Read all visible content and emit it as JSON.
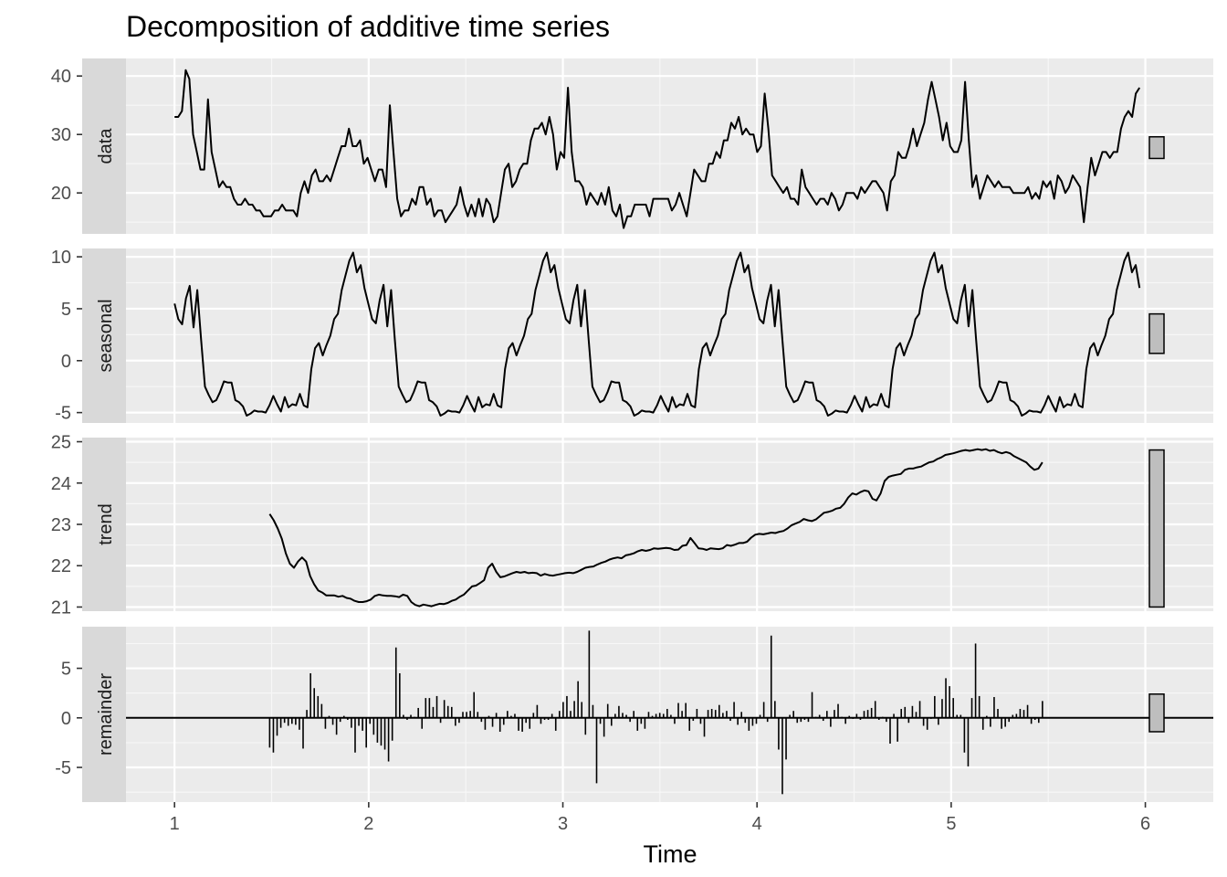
{
  "chart_data": {
    "type": "line",
    "title": "Decomposition of additive time series",
    "xlabel": "Time",
    "xlim": [
      0.75,
      6.35
    ],
    "x_ticks": [
      1,
      2,
      3,
      4,
      5,
      6
    ],
    "grid": true,
    "legend": "none",
    "panels": [
      {
        "name": "data",
        "kind": "line",
        "ylim": [
          13.0,
          43.0
        ],
        "y_ticks": [
          20,
          30,
          40
        ],
        "range_bar": [
          25.9,
          29.6
        ],
        "x_start": 1.0,
        "x_end": 5.97,
        "values": [
          33,
          33,
          34,
          41,
          39.5,
          30,
          27,
          24,
          24,
          36,
          27,
          24,
          21,
          22,
          21,
          21,
          19,
          18,
          18,
          19,
          18,
          18,
          17,
          17,
          16,
          16,
          16,
          17,
          17,
          18,
          17,
          17,
          17,
          16,
          20,
          22,
          20,
          23,
          24,
          22,
          22,
          23,
          22,
          24,
          26,
          28,
          28,
          31,
          28,
          28,
          29,
          25,
          26,
          24,
          22,
          24,
          24,
          21,
          35,
          27,
          19,
          16,
          17,
          17,
          19,
          18,
          21,
          21,
          18,
          19,
          16,
          17,
          17,
          15,
          16,
          17,
          18,
          21,
          18,
          16,
          18,
          16,
          19,
          16,
          19,
          18,
          15,
          16,
          20,
          24,
          25,
          21,
          22,
          24,
          25,
          25,
          29,
          31,
          31,
          32,
          30,
          33,
          30,
          24,
          27,
          26,
          38,
          27,
          22,
          22,
          21,
          18,
          20,
          19,
          18,
          20,
          18,
          21,
          17,
          16,
          18,
          14,
          16,
          16,
          18,
          18,
          18,
          18,
          16,
          19,
          19,
          19,
          19,
          19,
          17,
          18,
          20,
          18,
          16,
          20,
          24,
          23,
          22,
          22,
          25,
          25,
          27,
          26,
          29,
          29,
          32,
          31,
          33,
          30,
          31,
          30,
          30,
          27,
          28,
          37,
          31,
          23,
          22,
          21,
          20,
          21,
          19,
          19,
          18,
          24,
          21,
          20,
          19,
          18,
          19,
          19,
          18,
          20,
          19,
          17,
          18,
          20,
          20,
          20,
          19,
          21,
          20,
          21,
          22,
          22,
          21,
          20,
          17,
          22,
          23,
          27,
          26,
          26,
          28,
          31,
          28,
          30,
          32,
          36,
          39,
          36,
          33,
          29,
          32,
          28,
          27,
          27,
          29,
          39,
          29,
          21,
          23,
          19,
          21,
          23,
          22,
          21,
          22,
          21,
          21,
          21,
          20,
          20,
          20,
          20,
          21,
          19,
          20,
          19,
          22,
          21,
          22,
          19,
          23,
          22,
          20,
          21,
          23,
          22,
          21,
          15,
          21,
          26,
          23,
          25,
          27,
          27,
          26,
          27,
          27,
          31,
          33,
          34,
          33,
          37,
          38
        ]
      },
      {
        "name": "seasonal",
        "kind": "line",
        "ylim": [
          -6.0,
          10.8
        ],
        "y_ticks": [
          -5,
          0,
          5,
          10
        ],
        "range_bar": [
          0.7,
          4.5
        ],
        "x_start": 1.0,
        "x_end": 5.97,
        "values": [
          5.5,
          4,
          3.5,
          6,
          7.2,
          3.2,
          6.8,
          2,
          -2.5,
          -3.3,
          -4,
          -3.8,
          -3,
          -2,
          -2.1,
          -2.1,
          -3.8,
          -4,
          -4.4,
          -5.3,
          -5.1,
          -4.8,
          -4.9,
          -4.9,
          -5,
          -4.3,
          -3.4,
          -4.2,
          -4.9,
          -3.5,
          -4.5,
          -4.2,
          -4.3,
          -3.2,
          -4.3,
          -4.5,
          -0.8,
          1.2,
          1.7,
          0.5,
          1.5,
          2.4,
          4,
          4.5,
          6.8,
          8.2,
          9.6,
          10.4,
          8.5,
          9.2,
          7,
          5.5,
          4,
          3.6,
          5.8,
          7.3,
          3.3,
          6.8,
          2,
          -2.5,
          -3.3,
          -4,
          -3.8,
          -3,
          -2,
          -2.1,
          -2.1,
          -3.8,
          -4,
          -4.4,
          -5.3,
          -5.1,
          -4.8,
          -4.9,
          -4.9,
          -5,
          -4.3,
          -3.4,
          -4.2,
          -4.9,
          -3.5,
          -4.5,
          -4.2,
          -4.3,
          -3.2,
          -4.3,
          -4.5,
          -0.8,
          1.2,
          1.7,
          0.5,
          1.5,
          2.4,
          4,
          4.5,
          6.8,
          8.2,
          9.6,
          10.4,
          8.5,
          9.2,
          7,
          5.5,
          4,
          3.6,
          5.8,
          7.3,
          3.3,
          6.8,
          2,
          -2.5,
          -3.3,
          -4,
          -3.8,
          -3,
          -2,
          -2.1,
          -2.1,
          -3.8,
          -4,
          -4.4,
          -5.3,
          -5.1,
          -4.8,
          -4.9,
          -4.9,
          -5,
          -4.3,
          -3.4,
          -4.2,
          -4.9,
          -3.5,
          -4.5,
          -4.2,
          -4.3,
          -3.2,
          -4.3,
          -4.5,
          -0.8,
          1.2,
          1.7,
          0.5,
          1.5,
          2.4,
          4,
          4.5,
          6.8,
          8.2,
          9.6,
          10.4,
          8.5,
          9.2,
          7,
          5.5,
          4,
          3.6,
          5.8,
          7.3,
          3.3,
          6.8,
          2,
          -2.5,
          -3.3,
          -4,
          -3.8,
          -3,
          -2,
          -2.1,
          -2.1,
          -3.8,
          -4,
          -4.4,
          -5.3,
          -5.1,
          -4.8,
          -4.9,
          -4.9,
          -5,
          -4.3,
          -3.4,
          -4.2,
          -4.9,
          -3.5,
          -4.5,
          -4.2,
          -4.3,
          -3.2,
          -4.3,
          -4.5,
          -0.8,
          1.2,
          1.7,
          0.5,
          1.5,
          2.4,
          4,
          4.5,
          6.8,
          8.2,
          9.6,
          10.4,
          8.5,
          9.2,
          7,
          5.5,
          4,
          3.6,
          5.8,
          7.3,
          3.3,
          6.8,
          2,
          -2.5,
          -3.3,
          -4,
          -3.8,
          -3,
          -2,
          -2.1,
          -2.1,
          -3.8,
          -4,
          -4.4,
          -5.3,
          -5.1,
          -4.8,
          -4.9,
          -4.9,
          -5,
          -4.3,
          -3.4,
          -4.2,
          -4.9,
          -3.5,
          -4.5,
          -4.2,
          -4.3,
          -3.2,
          -4.3,
          -4.5,
          -0.8,
          1.2,
          1.7,
          0.5,
          1.5,
          2.4,
          4,
          4.5,
          6.8,
          8.2,
          9.6,
          10.4,
          8.5,
          9.2,
          7
        ]
      },
      {
        "name": "trend",
        "kind": "line",
        "ylim": [
          20.9,
          25.1
        ],
        "y_ticks": [
          21,
          22,
          23,
          24,
          25
        ],
        "range_bar": [
          21.0,
          24.8
        ],
        "x_start": 1.49,
        "x_end": 5.47,
        "values": [
          23.25,
          23.1,
          22.9,
          22.65,
          22.3,
          22.05,
          21.95,
          22.1,
          22.2,
          22.1,
          21.75,
          21.55,
          21.4,
          21.35,
          21.28,
          21.28,
          21.28,
          21.25,
          21.27,
          21.22,
          21.2,
          21.15,
          21.12,
          21.12,
          21.14,
          21.18,
          21.27,
          21.3,
          21.28,
          21.27,
          21.27,
          21.26,
          21.24,
          21.3,
          21.27,
          21.12,
          21.05,
          21.02,
          21.06,
          21.04,
          21.02,
          21.05,
          21.08,
          21.07,
          21.1,
          21.15,
          21.18,
          21.25,
          21.3,
          21.4,
          21.5,
          21.52,
          21.58,
          21.65,
          21.95,
          22.05,
          21.85,
          21.72,
          21.74,
          21.78,
          21.82,
          21.85,
          21.83,
          21.85,
          21.82,
          21.83,
          21.82,
          21.76,
          21.8,
          21.77,
          21.76,
          21.78,
          21.8,
          21.82,
          21.83,
          21.82,
          21.85,
          21.9,
          21.95,
          21.97,
          21.98,
          22.03,
          22.07,
          22.1,
          22.15,
          22.18,
          22.2,
          22.18,
          22.25,
          22.27,
          22.3,
          22.35,
          22.38,
          22.36,
          22.38,
          22.42,
          22.41,
          22.42,
          22.43,
          22.42,
          22.38,
          22.39,
          22.48,
          22.5,
          22.67,
          22.55,
          22.42,
          22.41,
          22.38,
          22.42,
          22.41,
          22.4,
          22.42,
          22.5,
          22.48,
          22.51,
          22.55,
          22.55,
          22.58,
          22.68,
          22.75,
          22.77,
          22.76,
          22.78,
          22.8,
          22.79,
          22.82,
          22.84,
          22.9,
          22.98,
          23.02,
          23.06,
          23.13,
          23.1,
          23.08,
          23.12,
          23.2,
          23.28,
          23.3,
          23.33,
          23.38,
          23.4,
          23.5,
          23.65,
          23.75,
          23.72,
          23.78,
          23.82,
          23.8,
          23.62,
          23.58,
          23.75,
          24.05,
          24.15,
          24.18,
          24.2,
          24.22,
          24.32,
          24.35,
          24.35,
          24.38,
          24.4,
          24.45,
          24.5,
          24.52,
          24.58,
          24.62,
          24.68,
          24.7,
          24.72,
          24.75,
          24.78,
          24.8,
          24.78,
          24.8,
          24.82,
          24.8,
          24.82,
          24.78,
          24.8,
          24.75,
          24.72,
          24.75,
          24.72,
          24.65,
          24.6,
          24.55,
          24.5,
          24.4,
          24.32,
          24.35,
          24.5
        ]
      },
      {
        "name": "remainder",
        "kind": "bars",
        "ylim": [
          -8.5,
          9.2
        ],
        "y_ticks": [
          -5,
          0,
          5
        ],
        "range_bar": [
          -1.4,
          2.4
        ],
        "x_start": 1.49,
        "x_end": 5.47,
        "values": [
          -3,
          -3.5,
          -1.8,
          -1,
          -0.5,
          -0.8,
          -0.6,
          -0.7,
          -1.2,
          -3.1,
          0.8,
          4.5,
          3,
          2.2,
          1.4,
          -1.1,
          0.2,
          -0.7,
          -1.7,
          -0.4,
          0.2,
          -0.2,
          -1,
          -3.5,
          -0.8,
          -1.3,
          -3,
          -0.6,
          -1.7,
          -2.5,
          -2.8,
          -3.2,
          -4.4,
          -2.3,
          7.1,
          4.5,
          0.3,
          -0.2,
          0.3,
          0.1,
          1,
          -1.1,
          2,
          2,
          1.1,
          2.2,
          -0.5,
          1.8,
          1.2,
          1.1,
          -0.8,
          -0.5,
          0.6,
          0.6,
          0.7,
          2.6,
          0.6,
          -0.4,
          -1.2,
          0.2,
          -0.9,
          0.5,
          -1.4,
          -0.7,
          0.7,
          0.2,
          0.4,
          -1.3,
          -1.4,
          -0.5,
          -1.1,
          0.5,
          1.3,
          -0.6,
          -0.2,
          -0.2,
          0.4,
          -1.3,
          0.7,
          1.6,
          2.2,
          0.7,
          1.7,
          3.7,
          1.6,
          -1.7,
          8.8,
          1.3,
          -6.6,
          -0.6,
          -1.9,
          1.4,
          -0.8,
          0.4,
          1.2,
          0.5,
          0.3,
          -0.4,
          0.7,
          -1.3,
          -0.6,
          -1.1,
          0.6,
          0.2,
          0.4,
          0.5,
          0.4,
          0.9,
          0.3,
          -0.6,
          1.5,
          0.7,
          1.5,
          -1.3,
          -0.3,
          0.9,
          -0.6,
          -1.9,
          0.8,
          0.9,
          0.8,
          1.3,
          0.5,
          0.7,
          -0.3,
          1.6,
          -0.7,
          0.6,
          -0.5,
          -1.3,
          -0.8,
          -0.6,
          0.3,
          1.6,
          -0.4,
          8.3,
          1.7,
          -3.2,
          -7.7,
          -4.2,
          0.3,
          0.7,
          -0.5,
          -0.4,
          -0.2,
          -0.4,
          2.6,
          0.1,
          0.3,
          -0.3,
          0.7,
          -0.9,
          0.8,
          1.4,
          0.1,
          -0.6,
          0.2,
          -0.1,
          0.4,
          -0.2,
          0.7,
          0.8,
          1,
          1.7,
          -0.2,
          0.1,
          -0.4,
          -2.6,
          0.4,
          -2.4,
          0.9,
          1.1,
          -0.5,
          1.2,
          0.6,
          1.7,
          -0.8,
          -1.2,
          -0.1,
          2.2,
          -0.7,
          1.9,
          4,
          3.2,
          2,
          0.3,
          0.3,
          -3.5,
          -4.9,
          2,
          7.5,
          2.2,
          -1.2,
          0.2,
          -0.9,
          2.1,
          0.9,
          -1.1,
          -0.9,
          -0.4,
          0.3,
          0.4,
          0.9,
          0.8,
          1.3,
          -0.6,
          -0.2,
          -0.5,
          1.7
        ]
      }
    ]
  }
}
